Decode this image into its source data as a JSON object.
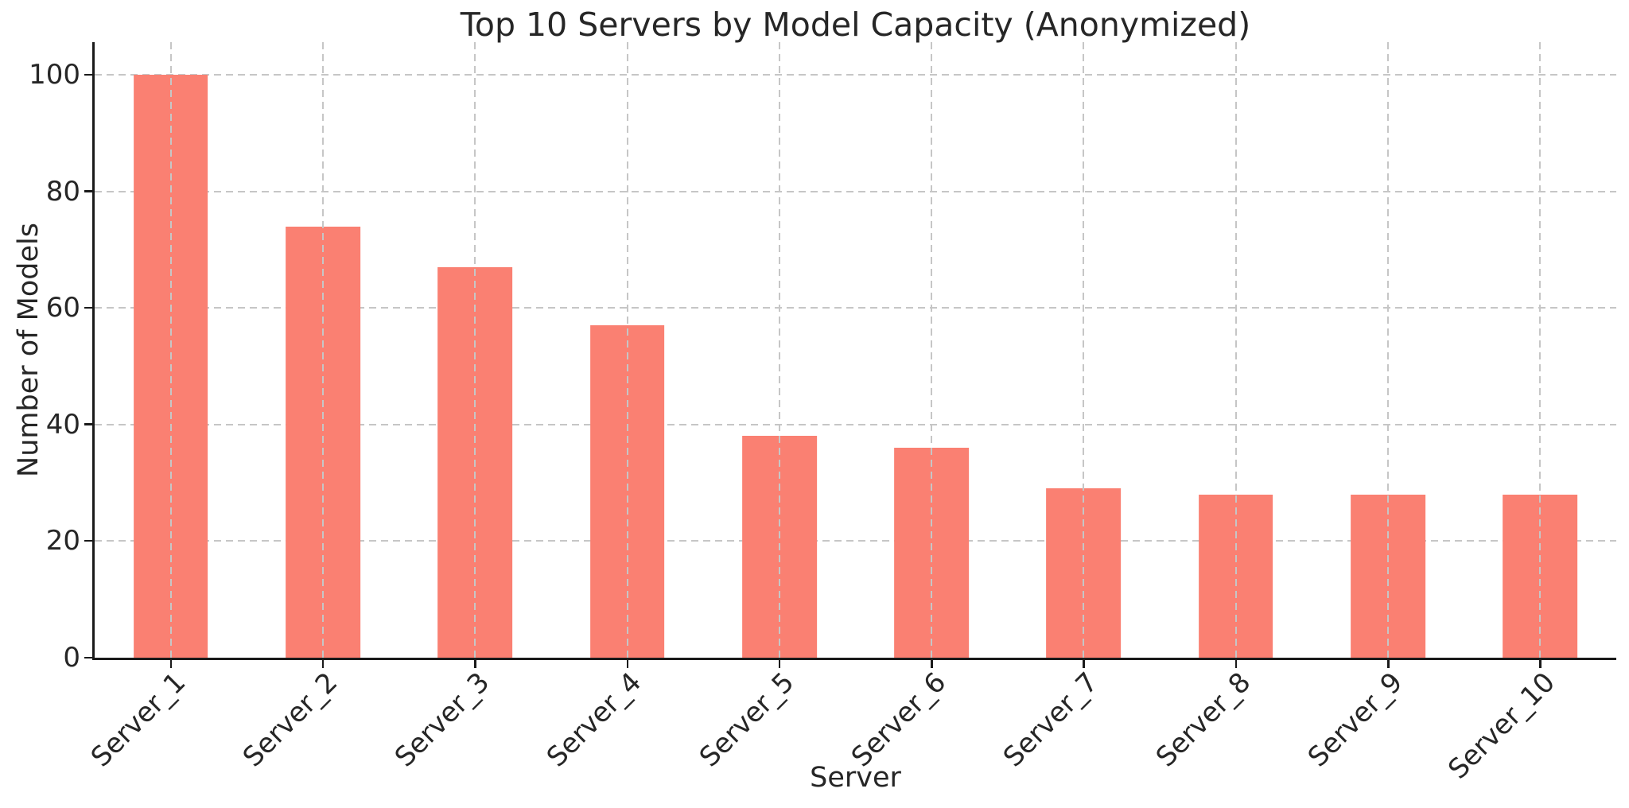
{
  "chart_data": {
    "type": "bar",
    "title": "Top 10 Servers by Model Capacity (Anonymized)",
    "xlabel": "Server",
    "ylabel": "Number of Models",
    "categories": [
      "Server_1",
      "Server_2",
      "Server_3",
      "Server_4",
      "Server_5",
      "Server_6",
      "Server_7",
      "Server_8",
      "Server_9",
      "Server_10"
    ],
    "values": [
      100,
      74,
      67,
      57,
      38,
      36,
      29,
      28,
      28,
      28
    ],
    "yticks": [
      0,
      20,
      40,
      60,
      80,
      100
    ],
    "ylim": [
      0,
      105.6
    ],
    "x_tick_rotation_deg": 45,
    "bar_width_fraction": 0.49,
    "bar_color": "#fa8072",
    "grid": {
      "visible": true,
      "style": "dashed",
      "color": "#c6c6c6",
      "vertical_lines_over_bars": true
    },
    "legend": "none"
  }
}
